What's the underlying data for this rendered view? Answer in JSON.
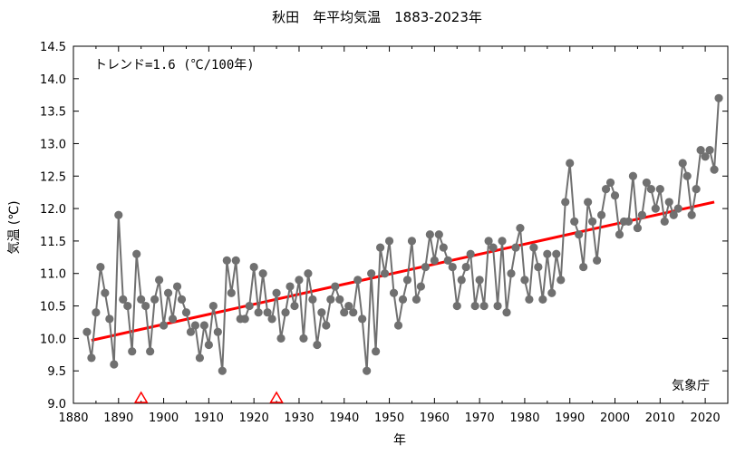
{
  "chart_data": {
    "type": "line",
    "title": "秋田　年平均気温　1883-2023年",
    "xlabel": "年",
    "ylabel": "気温 (℃)",
    "xlim": [
      1880,
      2025
    ],
    "ylim": [
      9.0,
      14.5
    ],
    "x_ticks": [
      1880,
      1890,
      1900,
      1910,
      1920,
      1930,
      1940,
      1950,
      1960,
      1970,
      1980,
      1990,
      2000,
      2010,
      2020
    ],
    "y_ticks": [
      "9.0",
      "9.5",
      "10.0",
      "10.5",
      "11.0",
      "11.5",
      "12.0",
      "12.5",
      "13.0",
      "13.5",
      "14.0",
      "14.5"
    ],
    "grid": false,
    "trend_label": "トレンド=1.6 (℃/100年)",
    "source_label": "気象庁",
    "colors": {
      "series": "#707070",
      "trend": "#ff0000",
      "marker": "#ff0000"
    },
    "series": [
      {
        "x": [
          1883,
          1884,
          1885,
          1886,
          1887,
          1888,
          1889,
          1890,
          1891,
          1892,
          1893,
          1894,
          1895,
          1896,
          1897,
          1898,
          1899,
          1900,
          1901,
          1902,
          1903,
          1904,
          1905,
          1906,
          1907,
          1908,
          1909,
          1910,
          1911,
          1912,
          1913,
          1914,
          1915,
          1916,
          1917,
          1918,
          1919,
          1920,
          1921,
          1922,
          1923,
          1924,
          1925,
          1926,
          1927,
          1928,
          1929,
          1930,
          1931,
          1932,
          1933,
          1934,
          1935,
          1936,
          1937,
          1938,
          1939,
          1940,
          1941,
          1942,
          1943,
          1944,
          1945,
          1946,
          1947,
          1948,
          1949,
          1950,
          1951,
          1952,
          1953,
          1954,
          1955,
          1956,
          1957,
          1958,
          1959,
          1960,
          1961,
          1962,
          1963,
          1964,
          1965,
          1966,
          1967,
          1968,
          1969,
          1970,
          1971,
          1972,
          1973,
          1974,
          1975,
          1976,
          1977,
          1978,
          1979,
          1980,
          1981,
          1982,
          1983,
          1984,
          1985,
          1986,
          1987,
          1988,
          1989,
          1990,
          1991,
          1992,
          1993,
          1994,
          1995,
          1996,
          1997,
          1998,
          1999,
          2000,
          2001,
          2002,
          2003,
          2004,
          2005,
          2006,
          2007,
          2008,
          2009,
          2010,
          2011,
          2012,
          2013,
          2014,
          2015,
          2016,
          2017,
          2018,
          2019,
          2020,
          2021,
          2022,
          2023
        ],
        "y": [
          10.1,
          9.7,
          10.4,
          11.1,
          10.7,
          10.3,
          9.6,
          11.9,
          10.6,
          10.5,
          9.8,
          11.3,
          10.6,
          10.5,
          9.8,
          10.6,
          10.9,
          10.2,
          10.7,
          10.3,
          10.8,
          10.6,
          10.4,
          10.1,
          10.2,
          9.7,
          10.2,
          9.9,
          10.5,
          10.1,
          9.5,
          11.2,
          10.7,
          11.2,
          10.3,
          10.3,
          10.5,
          11.1,
          10.4,
          11.0,
          10.4,
          10.3,
          10.7,
          10.0,
          10.4,
          10.8,
          10.5,
          10.9,
          10.0,
          11.0,
          10.6,
          9.9,
          10.4,
          10.2,
          10.6,
          10.8,
          10.6,
          10.4,
          10.5,
          10.4,
          10.9,
          10.3,
          9.5,
          11.0,
          9.8,
          11.4,
          11.0,
          11.5,
          10.7,
          10.2,
          10.6,
          10.9,
          11.5,
          10.6,
          10.8,
          11.1,
          11.6,
          11.2,
          11.6,
          11.4,
          11.2,
          11.1,
          10.5,
          10.9,
          11.1,
          11.3,
          10.5,
          10.9,
          10.5,
          11.5,
          11.4,
          10.5,
          11.5,
          10.4,
          11.0,
          11.4,
          11.7,
          10.9,
          10.6,
          11.4,
          11.1,
          10.6,
          11.3,
          10.7,
          11.3,
          10.9,
          12.1,
          12.7,
          11.8,
          11.6,
          11.1,
          12.1,
          11.8,
          11.2,
          11.9,
          12.3,
          12.4,
          12.2,
          11.6,
          11.8,
          11.8,
          12.5,
          11.7,
          11.9,
          12.4,
          12.3,
          12.0,
          12.3,
          11.8,
          12.1,
          11.9,
          12.0,
          12.7,
          12.5,
          11.9,
          12.3,
          12.9,
          12.8,
          12.9,
          12.6,
          13.7
        ]
      }
    ],
    "trend": {
      "x": [
        1884,
        2022
      ],
      "y": [
        9.97,
        12.1
      ]
    },
    "event_markers": [
      1895,
      1925
    ]
  }
}
